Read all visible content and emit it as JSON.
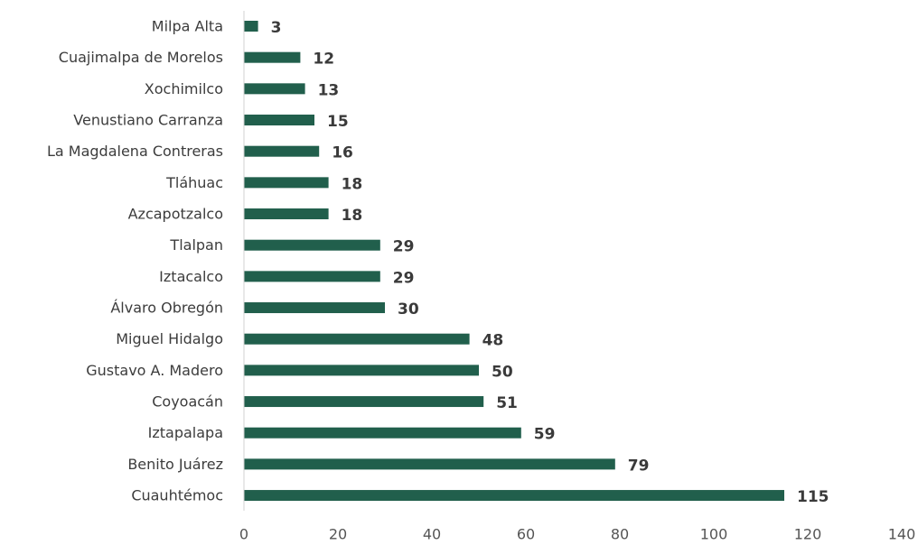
{
  "chart_data": {
    "type": "bar",
    "orientation": "horizontal",
    "title": "",
    "xlabel": "",
    "ylabel": "",
    "categories": [
      "Milpa Alta",
      "Cuajimalpa de Morelos",
      "Xochimilco",
      "Venustiano Carranza",
      "La Magdalena Contreras",
      "Tláhuac",
      "Azcapotzalco",
      "Tlalpan",
      "Iztacalco",
      "Álvaro Obregón",
      "Miguel Hidalgo",
      "Gustavo A. Madero",
      "Coyoacán",
      "Iztapalapa",
      "Benito Juárez",
      "Cuauhtémoc"
    ],
    "values": [
      3,
      12,
      13,
      15,
      16,
      18,
      18,
      29,
      29,
      30,
      48,
      50,
      51,
      59,
      79,
      115
    ],
    "xlim": [
      0,
      140
    ],
    "xticks": [
      0,
      20,
      40,
      60,
      80,
      100,
      120,
      140
    ],
    "grid": false,
    "legend": "none",
    "bar_color": "#215f4c"
  }
}
